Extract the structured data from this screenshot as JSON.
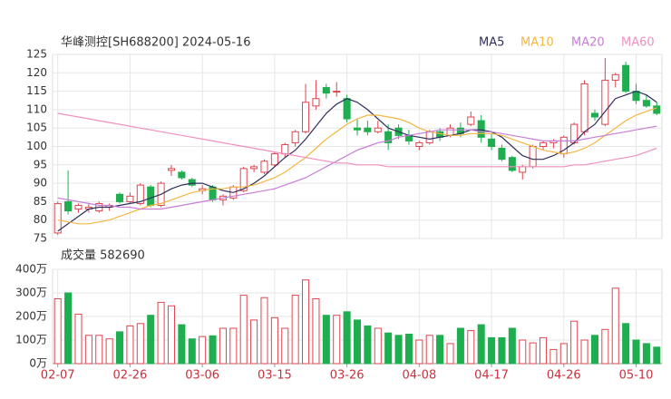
{
  "chart_data": [
    {
      "type": "candlestick",
      "title": "华峰测控[SH688200] 2024-05-16",
      "categories": [
        "02-07",
        null,
        null,
        null,
        null,
        null,
        null,
        "02-26",
        null,
        null,
        null,
        null,
        null,
        null,
        "03-06",
        null,
        null,
        null,
        null,
        null,
        null,
        "03-15",
        null,
        null,
        null,
        null,
        null,
        null,
        "03-26",
        null,
        null,
        null,
        null,
        null,
        null,
        "04-08",
        null,
        null,
        null,
        null,
        null,
        null,
        "04-17",
        null,
        null,
        null,
        null,
        null,
        null,
        "04-26",
        null,
        null,
        null,
        null,
        null,
        null,
        "05-10",
        null,
        null
      ],
      "open": [
        76.5,
        85,
        83,
        83,
        82.5,
        83.5,
        87,
        85,
        84.5,
        89,
        84,
        93.5,
        93,
        91,
        88,
        89,
        85.5,
        86,
        88,
        94,
        93,
        95,
        98,
        101,
        104,
        111,
        116,
        115,
        113,
        105,
        105,
        104,
        104,
        105,
        103,
        100,
        101,
        104,
        103,
        105,
        106,
        107,
        102,
        99.5,
        97,
        93,
        94.5,
        100,
        101,
        98,
        101,
        104,
        109,
        106,
        118,
        122,
        115,
        112.5,
        111
      ],
      "high": [
        85,
        93.5,
        84.5,
        84.5,
        85,
        84.5,
        87.5,
        87.5,
        90,
        89.5,
        90.5,
        95,
        93.5,
        91.5,
        89.5,
        89.5,
        87,
        89.5,
        94.5,
        95,
        96.5,
        98.5,
        101,
        104.5,
        117,
        118,
        117,
        117.5,
        114,
        107.5,
        107,
        107,
        106,
        106,
        104.5,
        101.5,
        104.5,
        105,
        106,
        106.5,
        109.5,
        108.5,
        103.5,
        100.5,
        97.5,
        95,
        100.5,
        101.5,
        102,
        103,
        106.5,
        118,
        110,
        124,
        120,
        123,
        117,
        114,
        112
      ],
      "low": [
        76,
        81.5,
        82,
        82,
        82,
        82.5,
        84.5,
        84.5,
        84,
        83.5,
        83.5,
        92,
        91,
        89,
        87,
        85,
        84,
        85.5,
        87.5,
        93,
        92.5,
        94.5,
        97,
        100,
        103.5,
        110,
        113,
        113.5,
        106.5,
        103,
        103,
        103.5,
        99,
        102,
        100.5,
        99,
        100.5,
        101.5,
        102.5,
        102.5,
        105.5,
        101,
        99,
        96,
        93,
        91,
        94,
        99,
        99.5,
        97,
        100.5,
        103,
        107,
        105.5,
        116,
        114.5,
        111.5,
        110.5,
        108.5
      ],
      "close": [
        84.5,
        82.5,
        84,
        83.5,
        84.5,
        84,
        85,
        86.5,
        89.5,
        84,
        90,
        94,
        91.5,
        89.5,
        88.5,
        85.5,
        86.5,
        89,
        94,
        94.5,
        96,
        98,
        100.5,
        104,
        112,
        113,
        114.5,
        115,
        107.5,
        104.5,
        104,
        105,
        101,
        103,
        101.5,
        101,
        104,
        102.5,
        105,
        103.5,
        108,
        102.5,
        100,
        96.5,
        93.5,
        94.5,
        100,
        101,
        101.5,
        102.5,
        106,
        117,
        108,
        118,
        119.5,
        115,
        112.5,
        111,
        109
      ],
      "up_color": "#e0454f",
      "down_color": "#1fae4f",
      "series": [
        {
          "name": "MA5",
          "color": "#2f2f5e",
          "values": [
            77,
            79,
            81,
            83,
            83.5,
            83.5,
            84,
            84.5,
            85,
            86,
            87,
            88.5,
            89.5,
            90,
            90,
            89,
            88,
            87.5,
            88.5,
            90,
            92,
            94.5,
            97,
            99,
            102,
            105.5,
            109,
            111.5,
            113,
            112,
            110,
            107.5,
            105,
            104,
            103,
            102.5,
            102,
            102.5,
            103,
            103.5,
            104.5,
            104.5,
            104,
            102.5,
            100,
            97.5,
            96.5,
            96.5,
            97.5,
            99,
            101,
            104,
            106,
            109.5,
            113,
            114,
            115,
            114,
            112
          ]
        },
        {
          "name": "MA10",
          "color": "#f5b642",
          "values": [
            80,
            79.5,
            79,
            79,
            79.5,
            80,
            81,
            82,
            83,
            84,
            84.5,
            85.5,
            86.5,
            87.5,
            88,
            88.5,
            88.5,
            89,
            89,
            89.5,
            90.5,
            91.5,
            93,
            95,
            97,
            99.5,
            102,
            104,
            106,
            107.5,
            108.5,
            108.5,
            108,
            107.5,
            106.5,
            105,
            104,
            103.5,
            103,
            103,
            103.5,
            103.5,
            103.5,
            103,
            102,
            101,
            100,
            99,
            98.5,
            98,
            98.5,
            99.5,
            101,
            103,
            105,
            107,
            108.5,
            109.5,
            110.5
          ]
        },
        {
          "name": "MA20",
          "color": "#c77dd6",
          "values": [
            86,
            85.5,
            85,
            84.5,
            84,
            84,
            83.5,
            83.5,
            83,
            83,
            83,
            83.5,
            84,
            84.5,
            85,
            85.5,
            86,
            86.5,
            87,
            87.5,
            88,
            88.5,
            89.5,
            90.5,
            91.5,
            93,
            94.5,
            96,
            97.5,
            99,
            100,
            101,
            101.5,
            102.5,
            103,
            103.5,
            104,
            104.5,
            104.5,
            104.5,
            104.5,
            104,
            104,
            103.5,
            103,
            102.5,
            102,
            101.5,
            101.5,
            101.5,
            101.5,
            102,
            102.5,
            103,
            103.5,
            104,
            104.5,
            105,
            105.5
          ]
        },
        {
          "name": "MA60",
          "color": "#f08fc0",
          "values": [
            109,
            108.5,
            108,
            107.5,
            107,
            106.5,
            106,
            105.5,
            105,
            104.5,
            104,
            103.5,
            103,
            102.5,
            102,
            101.5,
            101,
            100.5,
            100,
            99.5,
            99,
            98.5,
            98,
            97.5,
            97,
            96.5,
            96,
            95.5,
            95.5,
            95,
            95,
            95,
            94.5,
            94.5,
            94.5,
            94.5,
            94.5,
            94.5,
            94.5,
            94.5,
            94.5,
            94.5,
            94.5,
            94.5,
            94.5,
            94.5,
            94.5,
            94.5,
            94.5,
            94.5,
            95,
            95,
            95.5,
            96,
            96.5,
            97,
            97.5,
            98.5,
            99.5
          ]
        }
      ],
      "ylim": [
        75,
        125
      ],
      "yticks": [
        75,
        80,
        85,
        90,
        95,
        100,
        105,
        110,
        115,
        120,
        125
      ],
      "grid": true
    },
    {
      "type": "bar",
      "title": "成交量 582690",
      "values": [
        275,
        300,
        210,
        120,
        120,
        105,
        135,
        160,
        170,
        205,
        260,
        245,
        165,
        105,
        115,
        118,
        150,
        150,
        290,
        185,
        280,
        195,
        150,
        290,
        355,
        275,
        205,
        205,
        220,
        185,
        160,
        150,
        130,
        120,
        125,
        100,
        120,
        120,
        85,
        150,
        140,
        165,
        110,
        110,
        150,
        100,
        88,
        110,
        60,
        85,
        180,
        100,
        120,
        145,
        320,
        170,
        100,
        85,
        70
      ],
      "ylim": [
        0,
        400
      ],
      "yticks": [
        {
          "value": 0,
          "label": "0万"
        },
        {
          "value": 100,
          "label": "100万"
        },
        {
          "value": 200,
          "label": "200万"
        },
        {
          "value": 300,
          "label": "300万"
        },
        {
          "value": 400,
          "label": "400万"
        }
      ],
      "grid": true
    }
  ]
}
